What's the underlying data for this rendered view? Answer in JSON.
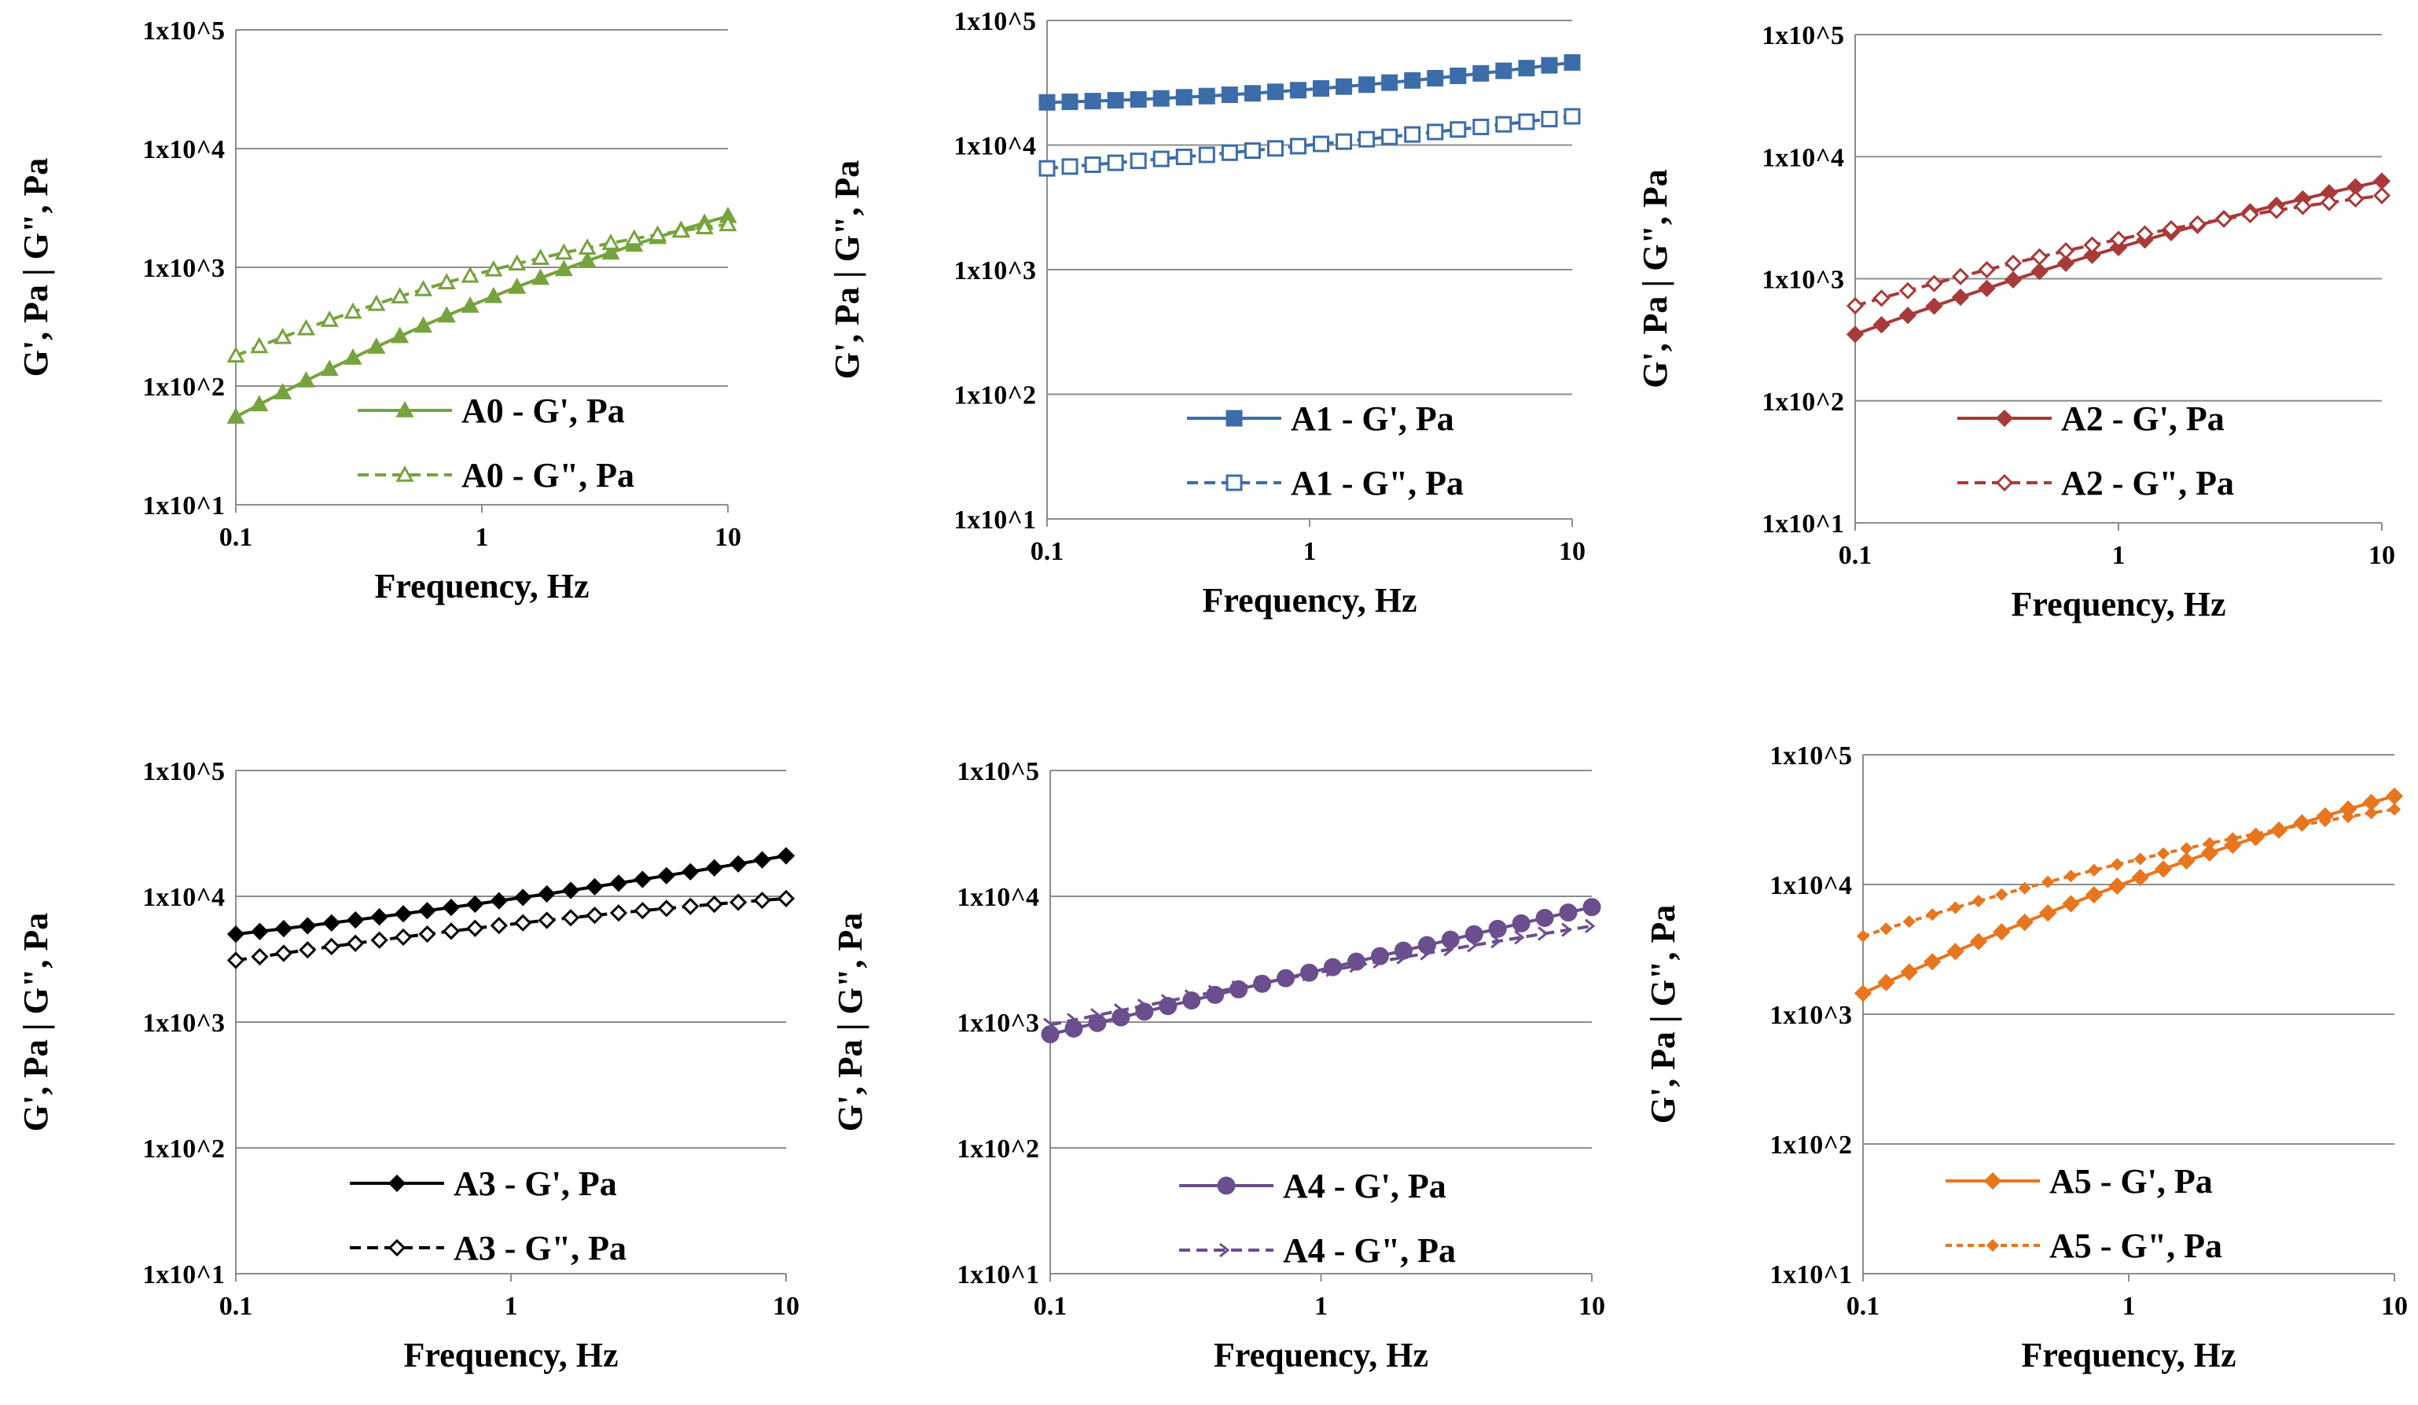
{
  "chart_data": [
    {
      "type": "line",
      "x_scale": "log",
      "y_scale": "log",
      "xlim": [
        0.1,
        10
      ],
      "ylim": [
        10,
        100000
      ],
      "xticks": [
        "0.1",
        "1",
        "10"
      ],
      "yticks": [
        "1x10^1",
        "1x10^2",
        "1x10^3",
        "1x10^4",
        "1x10^5"
      ],
      "xlabel": "Frequency, Hz",
      "ylabel": "G', Pa | G\", Pa",
      "grid": true,
      "legend": "bottom-center",
      "series": [
        {
          "name": "A0 - G', Pa",
          "color": "#77A33E",
          "marker": "filled-triangle",
          "dash": "solid",
          "start": 55,
          "end": 2700,
          "mid": 520
        },
        {
          "name": "A0 - G\", Pa",
          "color": "#77A33E",
          "marker": "open-triangle",
          "dash": "dashed",
          "start": 180,
          "end": 2300,
          "mid": 900
        }
      ]
    },
    {
      "type": "line",
      "x_scale": "log",
      "y_scale": "log",
      "xlim": [
        0.1,
        10
      ],
      "ylim": [
        10,
        100000
      ],
      "xticks": [
        "0.1",
        "1",
        "10"
      ],
      "yticks": [
        "1x10^1",
        "1x10^2",
        "1x10^3",
        "1x10^4",
        "1x10^5"
      ],
      "xlabel": "Frequency, Hz",
      "ylabel": "G', Pa | G\", Pa",
      "grid": true,
      "legend": "bottom-center",
      "series": [
        {
          "name": "A1 - G', Pa",
          "color": "#3C6DA8",
          "marker": "filled-square",
          "dash": "solid",
          "start": 22000,
          "end": 46000,
          "mid": 28000
        },
        {
          "name": "A1 - G\", Pa",
          "color": "#3C6DA8",
          "marker": "open-square",
          "dash": "dashed",
          "start": 6500,
          "end": 17000,
          "mid": 10000
        }
      ]
    },
    {
      "type": "line",
      "x_scale": "log",
      "y_scale": "log",
      "xlim": [
        0.1,
        10
      ],
      "ylim": [
        10,
        100000
      ],
      "xticks": [
        "0.1",
        "1",
        "10"
      ],
      "yticks": [
        "1x10^1",
        "1x10^2",
        "1x10^3",
        "1x10^4",
        "1x10^5"
      ],
      "xlabel": "Frequency, Hz",
      "ylabel": "G', Pa | G\", Pa",
      "grid": true,
      "legend": "bottom-center",
      "series": [
        {
          "name": "A2 - G', Pa",
          "color": "#A83A3A",
          "marker": "filled-diamond",
          "dash": "solid",
          "start": 350,
          "end": 6300,
          "mid": 1800
        },
        {
          "name": "A2 - G\", Pa",
          "color": "#A83A3A",
          "marker": "open-diamond",
          "dash": "dashed",
          "start": 600,
          "end": 4800,
          "mid": 2100
        }
      ]
    },
    {
      "type": "line",
      "x_scale": "log",
      "y_scale": "log",
      "xlim": [
        0.1,
        10
      ],
      "ylim": [
        10,
        100000
      ],
      "xticks": [
        "0.1",
        "1",
        "10"
      ],
      "yticks": [
        "1x10^1",
        "1x10^2",
        "1x10^3",
        "1x10^4",
        "1x10^5"
      ],
      "xlabel": "Frequency, Hz",
      "ylabel": "G', Pa | G\", Pa",
      "grid": true,
      "legend": "bottom-center",
      "series": [
        {
          "name": "A3 - G', Pa",
          "color": "#000000",
          "marker": "filled-diamond",
          "dash": "solid",
          "start": 5000,
          "end": 21000,
          "mid": 9500
        },
        {
          "name": "A3 - G\", Pa",
          "color": "#000000",
          "marker": "open-diamond",
          "dash": "dashed",
          "start": 3100,
          "end": 9600,
          "mid": 6000
        }
      ]
    },
    {
      "type": "line",
      "x_scale": "log",
      "y_scale": "log",
      "xlim": [
        0.1,
        10
      ],
      "ylim": [
        10,
        100000
      ],
      "xticks": [
        "0.1",
        "1",
        "10"
      ],
      "yticks": [
        "1x10^1",
        "1x10^2",
        "1x10^3",
        "1x10^4",
        "1x10^5"
      ],
      "xlabel": "Frequency, Hz",
      "ylabel": "G', Pa | G\", Pa",
      "grid": true,
      "legend": "bottom-center",
      "series": [
        {
          "name": "A4 - G', Pa",
          "color": "#6B4E8E",
          "marker": "filled-circle",
          "dash": "solid",
          "start": 800,
          "end": 8200,
          "mid": 2600
        },
        {
          "name": "A4 - G\", Pa",
          "color": "#6B4E8E",
          "marker": "open-arrow",
          "dash": "dashed",
          "start": 950,
          "end": 5800,
          "mid": 2500
        }
      ]
    },
    {
      "type": "line",
      "x_scale": "log",
      "y_scale": "log",
      "xlim": [
        0.1,
        10
      ],
      "ylim": [
        10,
        100000
      ],
      "xticks": [
        "0.1",
        "1",
        "10"
      ],
      "yticks": [
        "1x10^1",
        "1x10^2",
        "1x10^3",
        "1x10^4",
        "1x10^5"
      ],
      "xlabel": "Frequency, Hz",
      "ylabel": "G', Pa | G\", Pa",
      "grid": true,
      "legend": "bottom-center",
      "series": [
        {
          "name": "A5 - G', Pa",
          "color": "#E8761E",
          "marker": "filled-diamond",
          "dash": "solid",
          "start": 1450,
          "end": 48000,
          "mid": 10500
        },
        {
          "name": "A5 - G\", Pa",
          "color": "#E8761E",
          "marker": "small-diamond",
          "dash": "dotted",
          "start": 4000,
          "end": 38000,
          "mid": 15000
        }
      ]
    }
  ]
}
